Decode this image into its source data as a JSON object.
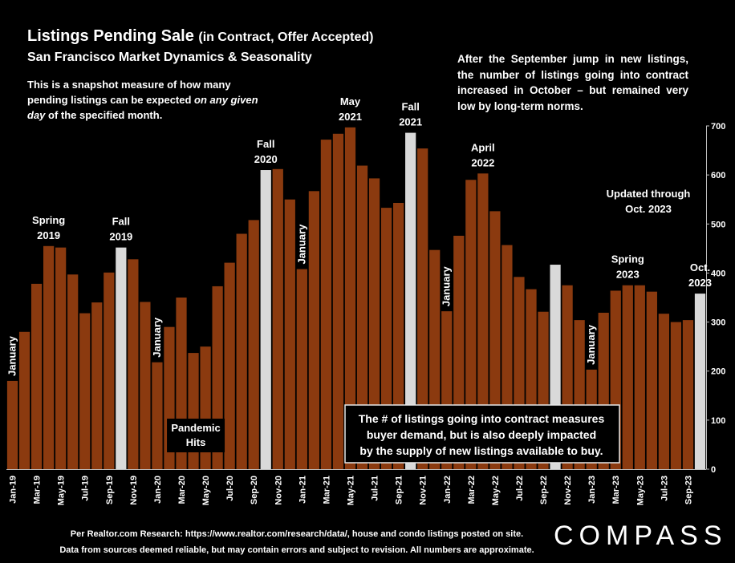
{
  "title_main": "Listings Pending Sale",
  "title_paren": "(in Contract, Offer Accepted)",
  "subtitle": "San Francisco Market Dynamics & Seasonality",
  "note_left_a": "This is a snapshot measure of how many pending listings can be expected ",
  "note_left_i": "on any given day",
  "note_left_b": " of the specified month.",
  "note_right": "After the September jump in new listings, the number of listings going into contract increased in October – but remained very low by long-term norms.",
  "updated_line1": "Updated through",
  "updated_line2": "Oct. 2023",
  "callout_box": [
    "The # of listings going into contract measures",
    "buyer demand, but is also deeply impacted",
    "by the supply of new listings available to buy."
  ],
  "footer_line1": "Per Realtor.com Research:  https://www.realtor.com/research/data/, house and condo listings posted on site.",
  "footer_line2": "Data from sources deemed reliable, but may contain errors and subject to revision. All numbers are approximate.",
  "logo": "COMPASS",
  "colors": {
    "bar": "#8B3A0F",
    "bar_highlight": "#D9D9D9",
    "background": "#000000",
    "text": "#FFFFFF"
  },
  "chart_data": {
    "type": "bar",
    "categories": [
      "Jan-19",
      "Feb-19",
      "Mar-19",
      "Apr-19",
      "May-19",
      "Jun-19",
      "Jul-19",
      "Aug-19",
      "Sep-19",
      "Oct-19",
      "Nov-19",
      "Dec-19",
      "Jan-20",
      "Feb-20",
      "Mar-20",
      "Apr-20",
      "May-20",
      "Jun-20",
      "Jul-20",
      "Aug-20",
      "Sep-20",
      "Oct-20",
      "Nov-20",
      "Dec-20",
      "Jan-21",
      "Feb-21",
      "Mar-21",
      "Apr-21",
      "May-21",
      "Jun-21",
      "Jul-21",
      "Aug-21",
      "Sep-21",
      "Oct-21",
      "Nov-21",
      "Dec-21",
      "Jan-22",
      "Feb-22",
      "Mar-22",
      "Apr-22",
      "May-22",
      "Jun-22",
      "Jul-22",
      "Aug-22",
      "Sep-22",
      "Oct-22",
      "Nov-22",
      "Dec-22",
      "Jan-23",
      "Feb-23",
      "Mar-23",
      "Apr-23",
      "May-23",
      "Jun-23",
      "Jul-23",
      "Aug-23",
      "Sep-23",
      "Oct-23"
    ],
    "values": [
      180,
      280,
      378,
      455,
      452,
      397,
      318,
      340,
      401,
      452,
      428,
      341,
      218,
      290,
      350,
      237,
      250,
      373,
      421,
      480,
      508,
      610,
      612,
      550,
      408,
      567,
      672,
      684,
      697,
      619,
      593,
      533,
      543,
      686,
      654,
      447,
      322,
      476,
      590,
      603,
      526,
      457,
      392,
      367,
      321,
      417,
      375,
      304,
      203,
      319,
      364,
      375,
      375,
      362,
      317,
      300,
      304,
      358
    ],
    "highlighted": [
      "Oct-19",
      "Oct-20",
      "Oct-21",
      "Oct-22",
      "Oct-23"
    ],
    "x_tick_labels": [
      "Jan-19",
      "Mar-19",
      "May-19",
      "Jul-19",
      "Sep-19",
      "Nov-19",
      "Jan-20",
      "Mar-20",
      "May-20",
      "Jul-20",
      "Sep-20",
      "Nov-20",
      "Jan-21",
      "Mar-21",
      "May-21",
      "Jul-21",
      "Sep-21",
      "Nov-21",
      "Jan-22",
      "Mar-22",
      "May-22",
      "Jul-22",
      "Sep-22",
      "Nov-22",
      "Jan-23",
      "Mar-23",
      "May-23",
      "Jul-23",
      "Sep-23"
    ],
    "yticks": [
      0,
      100,
      200,
      300,
      400,
      500,
      600,
      700
    ],
    "ylim": [
      0,
      700
    ],
    "y_axis_side": "right",
    "annotations": [
      {
        "month": "Jan-19",
        "text": "January",
        "vertical": true
      },
      {
        "month": "Apr-19",
        "lines": [
          "Spring",
          "2019"
        ]
      },
      {
        "month": "Oct-19",
        "lines": [
          "Fall",
          "2019"
        ]
      },
      {
        "month": "Jan-20",
        "text": "January",
        "vertical": true
      },
      {
        "month": "Oct-20",
        "lines": [
          "Fall",
          "2020"
        ]
      },
      {
        "month": "Jan-21",
        "text": "January",
        "vertical": true
      },
      {
        "month": "May-21",
        "lines": [
          "May",
          "2021"
        ]
      },
      {
        "month": "Oct-21",
        "lines": [
          "Fall",
          "2021"
        ]
      },
      {
        "month": "Jan-22",
        "text": "January",
        "vertical": true
      },
      {
        "month": "Apr-22",
        "lines": [
          "April",
          "2022"
        ]
      },
      {
        "month": "Jan-23",
        "text": "January",
        "vertical": true
      },
      {
        "month": "Apr-23",
        "lines": [
          "Spring",
          "2023"
        ]
      },
      {
        "month": "Oct-23",
        "lines": [
          "Oct.",
          "2023"
        ]
      }
    ],
    "pandemic_label": [
      "Pandemic",
      "Hits"
    ]
  }
}
